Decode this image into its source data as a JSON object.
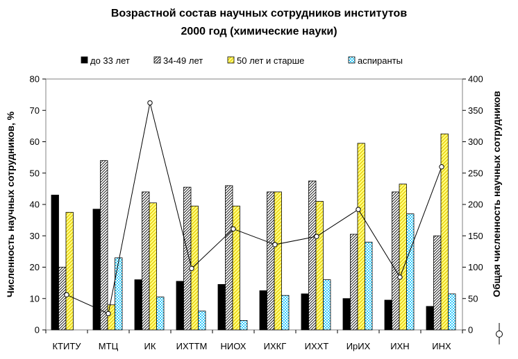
{
  "chart_data": {
    "type": "bar",
    "title": "Возрастной состав научных сотрудников институтов",
    "subtitle": "2000 год (химические науки)",
    "categories": [
      "КТИТУ",
      "МТЦ",
      "ИК",
      "ИХТТМ",
      "НИОХ",
      "ИХКГ",
      "ИХХТ",
      "ИрИХ",
      "ИХН",
      "ИНХ"
    ],
    "ylabel": "Численность научных сотрудников, %",
    "y2label": "Общая численность научных сотрудников",
    "ylim": [
      0,
      80
    ],
    "y2lim": [
      0,
      400
    ],
    "yticks": [
      "0",
      "10",
      "20",
      "30",
      "40",
      "50",
      "60",
      "70",
      "80"
    ],
    "y2ticks": [
      "0",
      "50",
      "100",
      "150",
      "200",
      "250",
      "300",
      "350",
      "400"
    ],
    "grid": false,
    "legend_position": "top",
    "series": [
      {
        "name": "до 33 лет",
        "axis": "left",
        "color": "#000000",
        "pattern": "solid",
        "values": [
          43,
          38.5,
          16,
          15.5,
          14.5,
          12.5,
          11.5,
          10,
          9.5,
          7.5
        ]
      },
      {
        "name": "34-49 лет",
        "axis": "left",
        "color": "#000000",
        "pattern": "hatch-diagonal",
        "values": [
          20,
          54,
          44,
          45.5,
          46,
          44,
          47.5,
          30.5,
          44,
          30
        ]
      },
      {
        "name": "50 лет и старше",
        "axis": "left",
        "color": "#ffff66",
        "pattern": "hatch-yellow",
        "values": [
          37.5,
          8,
          40.5,
          39.5,
          39.5,
          44,
          41,
          59.5,
          46.5,
          62.5
        ]
      },
      {
        "name": "аспиранты",
        "axis": "left",
        "color": "#33ccff",
        "pattern": "checker-cyan",
        "values": [
          null,
          23,
          10.5,
          6,
          3,
          11,
          16,
          28,
          37,
          11.5
        ]
      },
      {
        "name": "",
        "axis": "right",
        "type": "line",
        "marker": "circle",
        "values": [
          56,
          26,
          362,
          98,
          161,
          136,
          149,
          192,
          84,
          260
        ]
      }
    ]
  }
}
